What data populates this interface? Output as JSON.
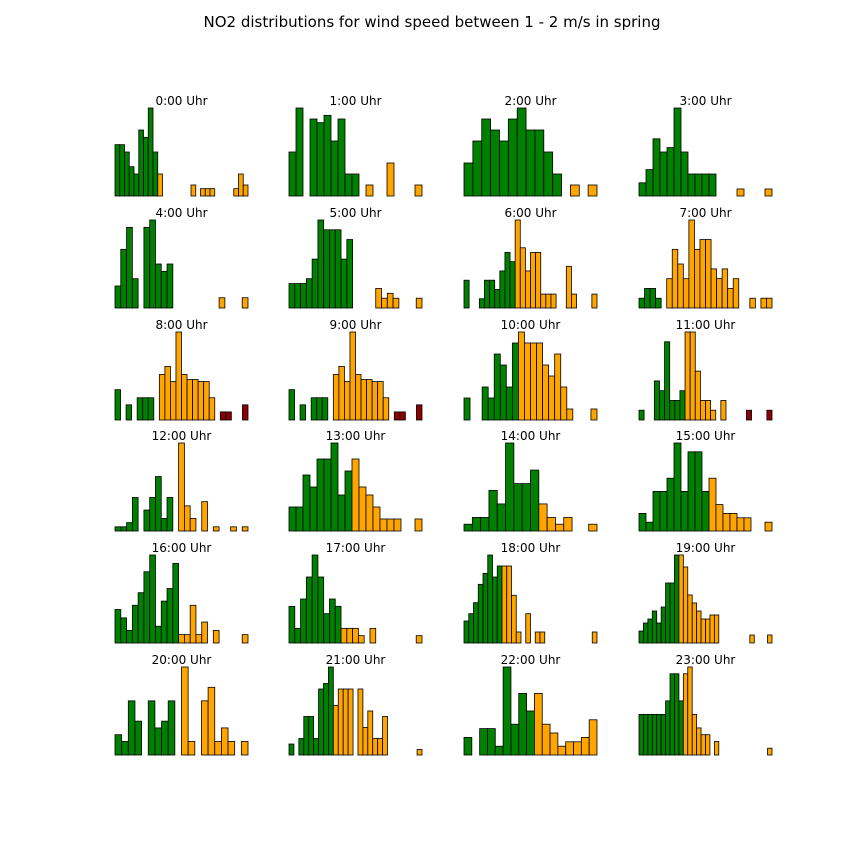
{
  "figure": {
    "title": "NO2 distributions for wind speed between 1 - 2 m/s in spring"
  },
  "colors": {
    "low": "#008000",
    "mid": "#ffa500",
    "high": "#8b0000",
    "edge": "#000000"
  },
  "chart_data": [
    {
      "type": "bar",
      "title": "0:00 Uhr",
      "values": [
        7,
        7,
        6,
        4,
        3,
        9,
        8,
        12,
        6,
        3,
        0,
        0,
        0,
        0,
        0,
        0,
        1.5,
        0,
        1,
        1,
        1,
        0,
        0,
        0,
        0,
        1,
        3,
        1.5
      ],
      "color_class": [
        "low",
        "low",
        "low",
        "low",
        "low",
        "low",
        "low",
        "low",
        "low",
        "mid",
        "mid",
        "mid",
        "mid",
        "mid",
        "mid",
        "mid",
        "mid",
        "mid",
        "mid",
        "mid",
        "mid",
        "mid",
        "mid",
        "mid",
        "mid",
        "mid",
        "mid",
        "mid"
      ]
    },
    {
      "type": "bar",
      "title": "1:00 Uhr",
      "values": [
        6,
        12,
        0,
        10.5,
        10,
        11,
        7.5,
        10.5,
        3,
        3,
        0,
        1.5,
        0,
        0,
        4.5,
        0,
        0,
        0,
        1.5
      ],
      "color_class": [
        "low",
        "low",
        "low",
        "low",
        "low",
        "low",
        "low",
        "low",
        "low",
        "low",
        "mid",
        "mid",
        "mid",
        "mid",
        "mid",
        "mid",
        "mid",
        "mid",
        "mid"
      ]
    },
    {
      "type": "bar",
      "title": "2:00 Uhr",
      "values": [
        3,
        5,
        7,
        6,
        5,
        7,
        8,
        6,
        6,
        4,
        2,
        0,
        1,
        0,
        1
      ],
      "color_class": [
        "low",
        "low",
        "low",
        "low",
        "low",
        "low",
        "low",
        "low",
        "low",
        "low",
        "low",
        "mid",
        "mid",
        "mid",
        "mid"
      ]
    },
    {
      "type": "bar",
      "title": "3:00 Uhr",
      "values": [
        1.5,
        3,
        6.5,
        5,
        5.5,
        10,
        5,
        2.5,
        2.5,
        2.5,
        2.5,
        0,
        0,
        0,
        0.8,
        0,
        0,
        0,
        0.8
      ],
      "color_class": [
        "low",
        "low",
        "low",
        "low",
        "low",
        "low",
        "low",
        "low",
        "low",
        "low",
        "low",
        "mid",
        "mid",
        "mid",
        "mid",
        "mid",
        "mid",
        "mid",
        "mid"
      ]
    },
    {
      "type": "bar",
      "title": "4:00 Uhr",
      "values": [
        1.5,
        4,
        5.5,
        2,
        0,
        5.5,
        6,
        3,
        2.5,
        3,
        0,
        0,
        0,
        0,
        0,
        0,
        0,
        0,
        0.7,
        0,
        0,
        0,
        0.7
      ],
      "color_class": [
        "low",
        "low",
        "low",
        "low",
        "low",
        "low",
        "low",
        "low",
        "low",
        "low",
        "mid",
        "mid",
        "mid",
        "mid",
        "mid",
        "mid",
        "mid",
        "mid",
        "mid",
        "mid",
        "mid",
        "mid",
        "mid"
      ]
    },
    {
      "type": "bar",
      "title": "5:00 Uhr",
      "values": [
        2.5,
        2.5,
        2.5,
        3,
        5,
        9,
        8,
        8,
        8,
        5,
        7,
        0,
        0,
        0,
        0,
        2,
        1,
        1.5,
        1,
        0,
        0,
        0,
        1
      ],
      "color_class": [
        "low",
        "low",
        "low",
        "low",
        "low",
        "low",
        "low",
        "low",
        "low",
        "low",
        "low",
        "mid",
        "mid",
        "mid",
        "mid",
        "mid",
        "mid",
        "mid",
        "mid",
        "mid",
        "mid",
        "mid",
        "mid"
      ]
    },
    {
      "type": "bar",
      "title": "6:00 Uhr",
      "values": [
        3,
        0,
        0,
        1,
        3,
        3,
        2,
        4,
        6,
        5,
        9.5,
        6.5,
        4,
        6,
        6,
        1.5,
        1.5,
        1.5,
        0,
        0,
        4.5,
        1.5,
        0,
        0,
        0,
        1.5
      ],
      "color_class": [
        "low",
        "low",
        "low",
        "low",
        "low",
        "low",
        "low",
        "low",
        "low",
        "low",
        "mid",
        "mid",
        "mid",
        "mid",
        "mid",
        "mid",
        "mid",
        "mid",
        "mid",
        "mid",
        "mid",
        "mid",
        "mid",
        "mid",
        "mid",
        "mid"
      ]
    },
    {
      "type": "bar",
      "title": "7:00 Uhr",
      "values": [
        1,
        2,
        2,
        1,
        0,
        3,
        6,
        4.5,
        3,
        9,
        6,
        7,
        7,
        4,
        3,
        4,
        2,
        3,
        0,
        0,
        1,
        0,
        1,
        1
      ],
      "color_class": [
        "low",
        "low",
        "low",
        "low",
        "low",
        "mid",
        "mid",
        "mid",
        "mid",
        "mid",
        "mid",
        "mid",
        "mid",
        "mid",
        "mid",
        "mid",
        "mid",
        "mid",
        "mid",
        "mid",
        "mid",
        "mid",
        "mid",
        "mid"
      ]
    },
    {
      "type": "bar",
      "title": "8:00 Uhr",
      "values": [
        3,
        0,
        1.5,
        0,
        2.2,
        2.2,
        2.2,
        0,
        4.5,
        5.3,
        3.8,
        8.7,
        4.5,
        4,
        4,
        3.8,
        3.8,
        2.2,
        0,
        0.8,
        0.8,
        0,
        0,
        1.5
      ],
      "color_class": [
        "low",
        "low",
        "low",
        "low",
        "low",
        "low",
        "low",
        "low",
        "mid",
        "mid",
        "mid",
        "mid",
        "mid",
        "mid",
        "mid",
        "mid",
        "mid",
        "mid",
        "mid",
        "high",
        "high",
        "high",
        "high",
        "high"
      ]
    },
    {
      "type": "bar",
      "title": "9:00 Uhr",
      "values": [
        3,
        0,
        1.5,
        0,
        2.2,
        2.2,
        2.2,
        0,
        4.5,
        5.3,
        3.8,
        8.7,
        4.5,
        4,
        4,
        3.8,
        3.8,
        2.2,
        0,
        0.8,
        0.8,
        0,
        0,
        1.5
      ],
      "color_class": [
        "low",
        "low",
        "low",
        "low",
        "low",
        "low",
        "low",
        "low",
        "mid",
        "mid",
        "mid",
        "mid",
        "mid",
        "mid",
        "mid",
        "mid",
        "mid",
        "mid",
        "mid",
        "high",
        "high",
        "high",
        "high",
        "high"
      ]
    },
    {
      "type": "bar",
      "title": "10:00 Uhr",
      "values": [
        3,
        0,
        0,
        4.5,
        3,
        9,
        7.5,
        4.5,
        10.5,
        12,
        10.5,
        10.5,
        10.5,
        7.5,
        6,
        9,
        4.5,
        1.5,
        0,
        0,
        0,
        1.5
      ],
      "color_class": [
        "low",
        "low",
        "low",
        "low",
        "low",
        "low",
        "low",
        "low",
        "low",
        "mid",
        "mid",
        "mid",
        "mid",
        "mid",
        "mid",
        "mid",
        "mid",
        "mid",
        "mid",
        "mid",
        "mid",
        "mid"
      ]
    },
    {
      "type": "bar",
      "title": "11:00 Uhr",
      "values": [
        1,
        0,
        0,
        4,
        3,
        8,
        2,
        2,
        3,
        9,
        9,
        5,
        2,
        2,
        1,
        0,
        2,
        0,
        0,
        0,
        0,
        1,
        0,
        0,
        0,
        1
      ],
      "color_class": [
        "low",
        "low",
        "low",
        "low",
        "low",
        "low",
        "low",
        "low",
        "low",
        "mid",
        "mid",
        "mid",
        "mid",
        "mid",
        "mid",
        "mid",
        "mid",
        "mid",
        "mid",
        "mid",
        "mid",
        "high",
        "high",
        "high",
        "high",
        "high"
      ]
    },
    {
      "type": "bar",
      "title": "12:00 Uhr",
      "values": [
        0.5,
        0.5,
        1,
        4,
        0,
        2.5,
        4,
        6.5,
        1.5,
        4,
        0,
        10.5,
        3,
        1.5,
        0,
        3.5,
        0,
        0.5,
        0,
        0,
        0.5,
        0,
        0.5
      ],
      "color_class": [
        "low",
        "low",
        "low",
        "low",
        "low",
        "low",
        "low",
        "low",
        "low",
        "low",
        "low",
        "mid",
        "mid",
        "mid",
        "mid",
        "mid",
        "mid",
        "mid",
        "mid",
        "mid",
        "mid",
        "mid",
        "mid"
      ]
    },
    {
      "type": "bar",
      "title": "13:00 Uhr",
      "values": [
        3,
        3,
        7,
        5.5,
        9,
        9,
        11,
        4.5,
        7.5,
        9,
        5.5,
        4.5,
        3,
        1.5,
        1.5,
        1.5,
        0,
        0,
        1.5
      ],
      "color_class": [
        "low",
        "low",
        "low",
        "low",
        "low",
        "low",
        "low",
        "low",
        "low",
        "mid",
        "mid",
        "mid",
        "mid",
        "mid",
        "mid",
        "mid",
        "mid",
        "mid",
        "mid"
      ]
    },
    {
      "type": "bar",
      "title": "14:00 Uhr",
      "values": [
        0.5,
        1,
        1,
        3,
        2,
        6.5,
        3.5,
        3.5,
        4.5,
        2,
        1,
        0.5,
        1,
        0,
        0,
        0.5
      ],
      "color_class": [
        "low",
        "low",
        "low",
        "low",
        "low",
        "low",
        "low",
        "low",
        "low",
        "mid",
        "mid",
        "mid",
        "mid",
        "mid",
        "mid",
        "mid"
      ]
    },
    {
      "type": "bar",
      "title": "15:00 Uhr",
      "values": [
        2,
        1,
        4.5,
        4.5,
        6,
        10,
        4.5,
        9,
        9,
        4.5,
        6,
        3,
        2,
        2,
        1.5,
        1.5,
        0,
        0,
        1
      ],
      "color_class": [
        "low",
        "low",
        "low",
        "low",
        "low",
        "low",
        "low",
        "low",
        "low",
        "low",
        "mid",
        "mid",
        "mid",
        "mid",
        "mid",
        "mid",
        "mid",
        "mid",
        "mid"
      ]
    },
    {
      "type": "bar",
      "title": "16:00 Uhr",
      "values": [
        4,
        3,
        1.5,
        4.5,
        6,
        8.5,
        10.5,
        2,
        5,
        6.5,
        9.5,
        1,
        1,
        4.5,
        1,
        2.5,
        0,
        1.5,
        0,
        0,
        0,
        0,
        1
      ],
      "color_class": [
        "low",
        "low",
        "low",
        "low",
        "low",
        "low",
        "low",
        "low",
        "low",
        "low",
        "low",
        "mid",
        "mid",
        "mid",
        "mid",
        "mid",
        "mid",
        "mid",
        "mid",
        "mid",
        "mid",
        "mid",
        "mid"
      ]
    },
    {
      "type": "bar",
      "title": "17:00 Uhr",
      "values": [
        2.5,
        1,
        3,
        4.5,
        6,
        4.5,
        2,
        3,
        2.5,
        1,
        1,
        1,
        0.5,
        0,
        1,
        0,
        0,
        0,
        0,
        0,
        0,
        0,
        0.5
      ],
      "color_class": [
        "low",
        "low",
        "low",
        "low",
        "low",
        "low",
        "low",
        "low",
        "low",
        "mid",
        "mid",
        "mid",
        "mid",
        "mid",
        "mid",
        "mid",
        "mid",
        "mid",
        "mid",
        "mid",
        "mid",
        "mid",
        "mid"
      ]
    },
    {
      "type": "bar",
      "title": "18:00 Uhr",
      "values": [
        3,
        4,
        5.5,
        8,
        9.5,
        12,
        9,
        10.5,
        10.5,
        10.5,
        6.5,
        1.5,
        0,
        4,
        0,
        1.5,
        1.5,
        0,
        0,
        0,
        0,
        0,
        0,
        0,
        0,
        0,
        0,
        1.5
      ],
      "color_class": [
        "low",
        "low",
        "low",
        "low",
        "low",
        "low",
        "low",
        "low",
        "mid",
        "mid",
        "mid",
        "mid",
        "mid",
        "mid",
        "mid",
        "mid",
        "mid",
        "mid",
        "mid",
        "mid",
        "mid",
        "mid",
        "mid",
        "mid",
        "mid",
        "mid",
        "mid",
        "mid"
      ]
    },
    {
      "type": "bar",
      "title": "19:00 Uhr",
      "values": [
        1.5,
        2.5,
        3,
        4,
        2.5,
        4.5,
        7.5,
        7.5,
        11,
        11,
        9.5,
        6,
        5,
        4,
        3,
        3,
        3.5,
        3.5,
        0,
        0,
        0,
        0,
        0,
        0,
        0,
        1,
        0,
        0,
        0,
        1
      ],
      "color_class": [
        "low",
        "low",
        "low",
        "low",
        "low",
        "low",
        "low",
        "low",
        "low",
        "mid",
        "mid",
        "mid",
        "mid",
        "mid",
        "mid",
        "mid",
        "mid",
        "mid",
        "mid",
        "mid",
        "mid",
        "mid",
        "mid",
        "mid",
        "mid",
        "mid",
        "mid",
        "mid",
        "mid",
        "mid"
      ]
    },
    {
      "type": "bar",
      "title": "20:00 Uhr",
      "values": [
        1.5,
        1,
        4,
        2.5,
        0,
        4,
        2,
        2.5,
        4,
        0,
        6.5,
        1,
        0,
        4,
        5,
        1,
        2,
        1,
        0,
        1
      ],
      "color_class": [
        "low",
        "low",
        "low",
        "low",
        "low",
        "low",
        "low",
        "low",
        "low",
        "low",
        "mid",
        "mid",
        "mid",
        "mid",
        "mid",
        "mid",
        "mid",
        "mid",
        "mid",
        "mid"
      ]
    },
    {
      "type": "bar",
      "title": "21:00 Uhr",
      "values": [
        1,
        0,
        1.5,
        3.5,
        3.5,
        1.5,
        6,
        6.5,
        8,
        4.5,
        6,
        6,
        6,
        0,
        6,
        2.5,
        4,
        1.5,
        1.5,
        3.5,
        0,
        0,
        0,
        0,
        0,
        0,
        0.5
      ],
      "color_class": [
        "low",
        "low",
        "low",
        "low",
        "low",
        "low",
        "low",
        "low",
        "low",
        "mid",
        "mid",
        "mid",
        "mid",
        "mid",
        "mid",
        "mid",
        "mid",
        "mid",
        "mid",
        "mid",
        "mid",
        "mid",
        "mid",
        "mid",
        "mid",
        "mid",
        "mid"
      ]
    },
    {
      "type": "bar",
      "title": "22:00 Uhr",
      "values": [
        2,
        0,
        3,
        3,
        1,
        10,
        3.5,
        7,
        5,
        7,
        3.5,
        2.5,
        1,
        1.5,
        1.5,
        2,
        4
      ],
      "color_class": [
        "low",
        "low",
        "low",
        "low",
        "low",
        "low",
        "low",
        "low",
        "low",
        "mid",
        "mid",
        "mid",
        "mid",
        "mid",
        "mid",
        "mid",
        "mid"
      ]
    },
    {
      "type": "bar",
      "title": "23:00 Uhr",
      "values": [
        3,
        3,
        3,
        3,
        3,
        3,
        4,
        6,
        6,
        4,
        6,
        6.5,
        3,
        2,
        1.5,
        1.5,
        0,
        1,
        0,
        0,
        0,
        0,
        0,
        0,
        0,
        0,
        0,
        0,
        0,
        0.5
      ],
      "color_class": [
        "low",
        "low",
        "low",
        "low",
        "low",
        "low",
        "low",
        "low",
        "low",
        "low",
        "mid",
        "mid",
        "mid",
        "mid",
        "mid",
        "mid",
        "mid",
        "mid",
        "mid",
        "mid",
        "mid",
        "mid",
        "mid",
        "mid",
        "mid",
        "mid",
        "mid",
        "mid",
        "mid",
        "mid"
      ]
    }
  ]
}
